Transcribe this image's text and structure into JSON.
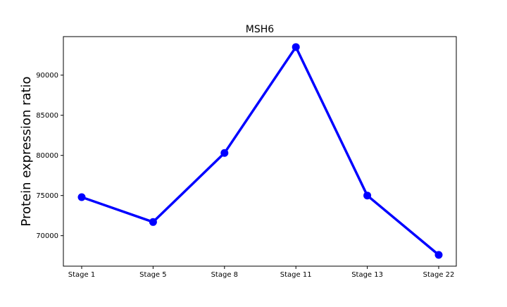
{
  "chart_data": {
    "type": "line",
    "title": "MSH6",
    "xlabel": "",
    "ylabel": "Protein expression ratio",
    "categories": [
      "Stage 1",
      "Stage 5",
      "Stage 8",
      "Stage 11",
      "Stage 13",
      "Stage 22"
    ],
    "series": [
      {
        "values": [
          74800,
          71700,
          80300,
          93500,
          75000,
          67600
        ],
        "color": "#0000ff",
        "marker": "circle"
      }
    ],
    "ylim": [
      66200,
      94800
    ],
    "yticks": [
      70000,
      75000,
      80000,
      85000,
      90000
    ],
    "ytick_labels": [
      "70000",
      "75000",
      "80000",
      "85000",
      "90000"
    ],
    "grid": false,
    "legend": "none"
  }
}
